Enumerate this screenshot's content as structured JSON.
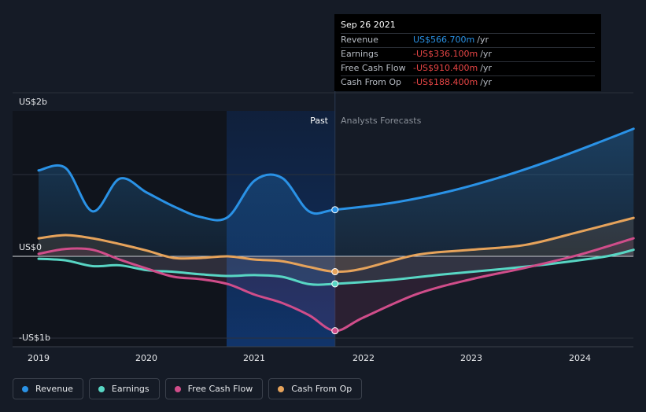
{
  "chart_data": {
    "type": "area",
    "title": "",
    "y_unit": "US$",
    "ylim_billions": [
      -1,
      2
    ],
    "y_ticks": [
      {
        "value": 2,
        "label": "US$2b"
      },
      {
        "value": 0,
        "label": "US$0"
      },
      {
        "value": -1,
        "label": "-US$1b"
      }
    ],
    "x_ticks": [
      "2019",
      "2020",
      "2021",
      "2022",
      "2023",
      "2024"
    ],
    "past_label": "Past",
    "forecast_label": "Analysts Forecasts",
    "divider_date": "Sep 26 2021",
    "series": [
      {
        "name": "Revenue",
        "color": "#2a92e6",
        "x": [
          2019.0,
          2019.25,
          2019.5,
          2019.75,
          2020.0,
          2020.25,
          2020.5,
          2020.75,
          2021.0,
          2021.25,
          2021.5,
          2021.74,
          2022.25,
          2022.75,
          2023.25,
          2023.75,
          2024.25,
          2024.5
        ],
        "values": [
          1.05,
          1.08,
          0.55,
          0.95,
          0.78,
          0.61,
          0.48,
          0.48,
          0.93,
          0.96,
          0.55,
          0.57,
          0.65,
          0.78,
          0.96,
          1.18,
          1.43,
          1.56
        ]
      },
      {
        "name": "Earnings",
        "color": "#58d6c4",
        "x": [
          2019.0,
          2019.25,
          2019.5,
          2019.75,
          2020.0,
          2020.25,
          2020.5,
          2020.75,
          2021.0,
          2021.25,
          2021.5,
          2021.74,
          2022.25,
          2022.75,
          2023.25,
          2023.75,
          2024.25,
          2024.5
        ],
        "values": [
          -0.03,
          -0.05,
          -0.12,
          -0.11,
          -0.17,
          -0.19,
          -0.22,
          -0.24,
          -0.23,
          -0.25,
          -0.34,
          -0.336,
          -0.29,
          -0.22,
          -0.16,
          -0.09,
          0.0,
          0.08
        ]
      },
      {
        "name": "Free Cash Flow",
        "color": "#d04d8a",
        "x": [
          2019.0,
          2019.25,
          2019.5,
          2019.75,
          2020.0,
          2020.25,
          2020.5,
          2020.75,
          2021.0,
          2021.25,
          2021.5,
          2021.74,
          2022.0,
          2022.5,
          2023.0,
          2023.5,
          2024.0,
          2024.5
        ],
        "values": [
          0.03,
          0.09,
          0.08,
          -0.04,
          -0.15,
          -0.25,
          -0.28,
          -0.34,
          -0.47,
          -0.57,
          -0.72,
          -0.91,
          -0.75,
          -0.46,
          -0.28,
          -0.14,
          0.02,
          0.22
        ]
      },
      {
        "name": "Cash From Op",
        "color": "#e6a35b",
        "x": [
          2019.0,
          2019.25,
          2019.5,
          2019.75,
          2020.0,
          2020.25,
          2020.5,
          2020.75,
          2021.0,
          2021.25,
          2021.5,
          2021.74,
          2022.0,
          2022.5,
          2023.0,
          2023.5,
          2024.0,
          2024.5
        ],
        "values": [
          0.22,
          0.26,
          0.22,
          0.15,
          0.07,
          -0.02,
          -0.02,
          0.0,
          -0.04,
          -0.06,
          -0.13,
          -0.188,
          -0.15,
          0.02,
          0.08,
          0.14,
          0.3,
          0.47
        ]
      }
    ]
  },
  "tooltip": {
    "date": "Sep 26 2021",
    "rows": [
      {
        "label": "Revenue",
        "value": "US$566.700m",
        "unit": "/yr",
        "color": "#2a92e6"
      },
      {
        "label": "Earnings",
        "value": "-US$336.100m",
        "unit": "/yr",
        "color": "#e64545"
      },
      {
        "label": "Free Cash Flow",
        "value": "-US$910.400m",
        "unit": "/yr",
        "color": "#e64545"
      },
      {
        "label": "Cash From Op",
        "value": "-US$188.400m",
        "unit": "/yr",
        "color": "#e64545"
      }
    ]
  },
  "legend": [
    {
      "label": "Revenue",
      "color": "#2a92e6"
    },
    {
      "label": "Earnings",
      "color": "#58d6c4"
    },
    {
      "label": "Free Cash Flow",
      "color": "#d04d8a"
    },
    {
      "label": "Cash From Op",
      "color": "#e6a35b"
    }
  ]
}
